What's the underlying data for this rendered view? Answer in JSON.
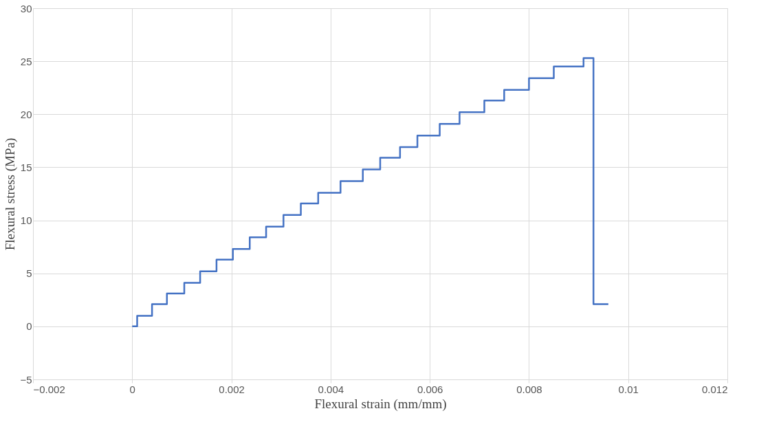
{
  "chart_data": {
    "type": "step",
    "xlabel": "Flexural strain (mm/mm)",
    "ylabel": "Flexural stress (MPa)",
    "x": [
      0,
      0.0001,
      0.0004,
      0.0007,
      0.00105,
      0.00137,
      0.0017,
      0.00203,
      0.00237,
      0.0027,
      0.00305,
      0.0034,
      0.00375,
      0.0042,
      0.00465,
      0.005,
      0.0054,
      0.00575,
      0.0062,
      0.0066,
      0.0071,
      0.0075,
      0.008,
      0.0085,
      0.0091,
      0.0093,
      0.0096
    ],
    "series": [
      {
        "color": "#4472c4",
        "values": [
          0,
          1,
          2.1,
          3.1,
          4.1,
          5.2,
          6.3,
          7.3,
          8.4,
          9.4,
          10.5,
          11.6,
          12.6,
          13.7,
          14.8,
          15.9,
          16.9,
          18.0,
          19.1,
          20.2,
          21.3,
          22.3,
          23.4,
          24.5,
          25.3,
          2.1,
          2.1
        ]
      }
    ],
    "xlim": [
      -0.002,
      0.012
    ],
    "xticks": [
      -0.002,
      0,
      0.002,
      0.004,
      0.006,
      0.008,
      0.01,
      0.012
    ],
    "ylim": [
      -5,
      30
    ],
    "yticks": [
      -5,
      0,
      5,
      10,
      15,
      20,
      25,
      30
    ],
    "grid": true,
    "marker": "none",
    "line_style": "solid"
  }
}
